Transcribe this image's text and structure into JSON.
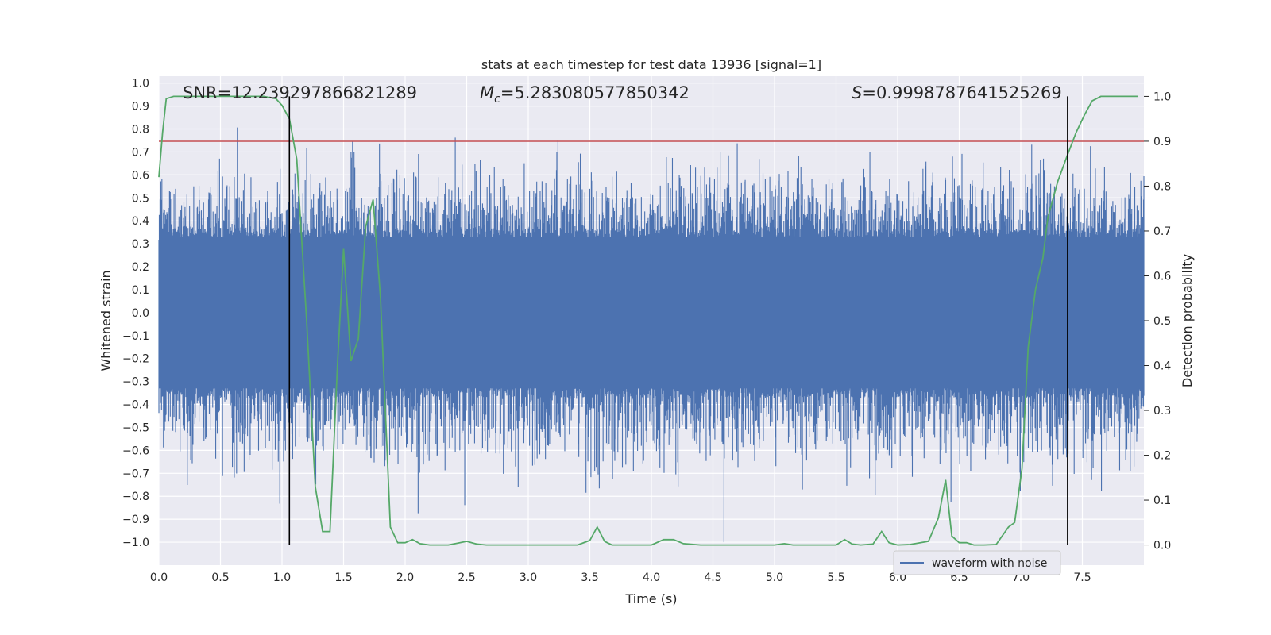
{
  "chart_data": {
    "type": "line",
    "title": "stats at each timestep for test data 13936 [signal=1]",
    "xlabel": "Time (s)",
    "ylabel_left": "Whitened strain",
    "ylabel_right": "Detection probability",
    "xlim": [
      0.0,
      8.0
    ],
    "ylim_left": [
      -1.1,
      1.03
    ],
    "ylim_right": [
      -0.045,
      1.045
    ],
    "xticks": [
      "0.0",
      "0.5",
      "1.0",
      "1.5",
      "2.0",
      "2.5",
      "3.0",
      "3.5",
      "4.0",
      "4.5",
      "5.0",
      "5.5",
      "6.0",
      "6.5",
      "7.0",
      "7.5"
    ],
    "yticks_left": [
      "1.0",
      "0.9",
      "0.8",
      "0.7",
      "0.6",
      "0.5",
      "0.4",
      "0.3",
      "0.2",
      "0.1",
      "0.0",
      "-0.1",
      "-0.2",
      "-0.3",
      "-0.4",
      "-0.5",
      "-0.6",
      "-0.7",
      "-0.8",
      "-0.9",
      "-1.0"
    ],
    "yticks_right": [
      "1.0",
      "0.9",
      "0.8",
      "0.7",
      "0.6",
      "0.5",
      "0.4",
      "0.3",
      "0.2",
      "0.1",
      "0.0"
    ],
    "grid": true,
    "legend_placement": "lower right",
    "legend_entries": [
      "waveform with noise"
    ],
    "annotations": {
      "snr": "SNR=12.239297866821289",
      "mc_symbol": "M",
      "mc_subscript": "c",
      "mc_value": "=5.283080577850342",
      "s_symbol": "S",
      "s_value": "=0.9998787641525269"
    },
    "threshold_probability": 0.9,
    "vertical_markers_x": [
      1.06,
      7.38
    ],
    "colors": {
      "background": "#eaeaf2",
      "grid": "#ffffff",
      "waveform": "#4c72b0",
      "probability": "#55a868",
      "threshold": "#c44e52",
      "marker": "#000000"
    },
    "series": [
      {
        "name": "waveform with noise",
        "axis": "left",
        "description_sampled": "white-noise-like strain, core band about ±0.35 with spikes to ±0.8",
        "envelope_x": [
          0.0,
          8.0
        ],
        "core_amplitude": 0.33,
        "peak_amplitude_max": 0.83,
        "peak_amplitude_min": -1.0
      },
      {
        "axis": "right",
        "x": [
          0.0,
          0.03,
          0.06,
          0.12,
          0.3,
          0.5,
          0.7,
          0.85,
          0.95,
          1.0,
          1.06,
          1.12,
          1.2,
          1.27,
          1.33,
          1.39,
          1.45,
          1.5,
          1.56,
          1.62,
          1.68,
          1.74,
          1.8,
          1.88,
          1.94,
          2.0,
          2.06,
          2.12,
          2.2,
          2.35,
          2.5,
          2.58,
          2.66,
          2.8,
          2.95,
          3.05,
          3.2,
          3.4,
          3.5,
          3.56,
          3.62,
          3.68,
          3.8,
          4.0,
          4.1,
          4.18,
          4.26,
          4.4,
          4.6,
          4.8,
          5.0,
          5.08,
          5.15,
          5.3,
          5.5,
          5.57,
          5.63,
          5.7,
          5.8,
          5.87,
          5.93,
          6.0,
          6.1,
          6.25,
          6.33,
          6.39,
          6.44,
          6.5,
          6.56,
          6.62,
          6.7,
          6.8,
          6.9,
          6.95,
          7.01,
          7.06,
          7.12,
          7.18,
          7.22,
          7.3,
          7.38,
          7.45,
          7.52,
          7.58,
          7.65,
          7.78,
          7.95
        ],
        "values": [
          0.82,
          0.92,
          0.995,
          1.0,
          1.0,
          1.0,
          1.0,
          1.0,
          0.995,
          0.98,
          0.95,
          0.86,
          0.5,
          0.13,
          0.03,
          0.03,
          0.4,
          0.66,
          0.41,
          0.46,
          0.71,
          0.77,
          0.55,
          0.04,
          0.005,
          0.005,
          0.012,
          0.003,
          0.0,
          0.0,
          0.008,
          0.002,
          0.0,
          0.0,
          0.0,
          0.0,
          0.0,
          0.0,
          0.01,
          0.04,
          0.008,
          0.0,
          0.0,
          0.0,
          0.012,
          0.012,
          0.003,
          0.0,
          0.0,
          0.0,
          0.0,
          0.003,
          0.0,
          0.0,
          0.0,
          0.012,
          0.002,
          0.0,
          0.002,
          0.03,
          0.005,
          0.0,
          0.001,
          0.008,
          0.06,
          0.145,
          0.02,
          0.005,
          0.005,
          0.0,
          0.0,
          0.001,
          0.04,
          0.05,
          0.17,
          0.44,
          0.57,
          0.64,
          0.73,
          0.81,
          0.87,
          0.92,
          0.96,
          0.99,
          1.0,
          1.0,
          1.0
        ]
      }
    ]
  }
}
